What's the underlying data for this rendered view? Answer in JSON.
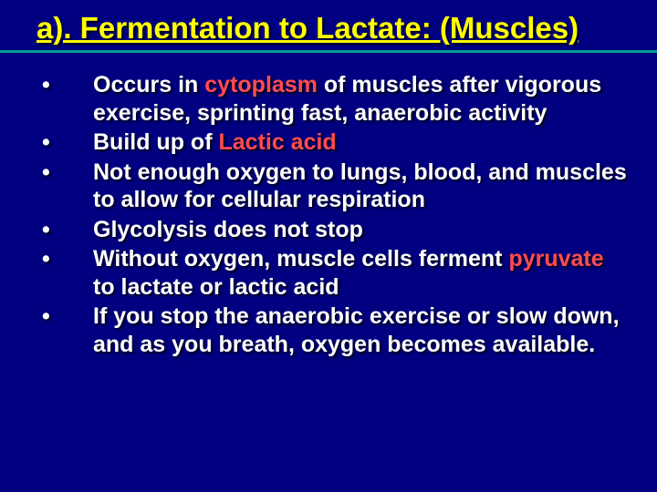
{
  "slide": {
    "background_color": "#000080",
    "title_color": "#ffff00",
    "text_color": "#ffffff",
    "highlight_color": "#ff4d4d",
    "divider_color": "#009999",
    "title_fontsize": 33,
    "body_fontsize": 25,
    "title": "a). Fermentation to Lactate: (Muscles)",
    "bullets": [
      {
        "pre": "Occurs in ",
        "hl": "cytoplasm",
        "post": " of muscles after vigorous exercise, sprinting fast, anaerobic activity"
      },
      {
        "pre": "Build up of ",
        "hl": "Lactic acid",
        "post": ""
      },
      {
        "pre": "Not enough oxygen to lungs, blood, and muscles to allow for cellular respiration",
        "hl": "",
        "post": ""
      },
      {
        "pre": "Glycolysis does not stop",
        "hl": "",
        "post": ""
      },
      {
        "pre": "Without oxygen, muscle cells ferment ",
        "hl": "pyruvate",
        "post": " to lactate or lactic acid"
      },
      {
        "pre": "If you stop the anaerobic exercise or slow down, and as you breath, oxygen becomes available.",
        "hl": "",
        "post": ""
      }
    ]
  }
}
